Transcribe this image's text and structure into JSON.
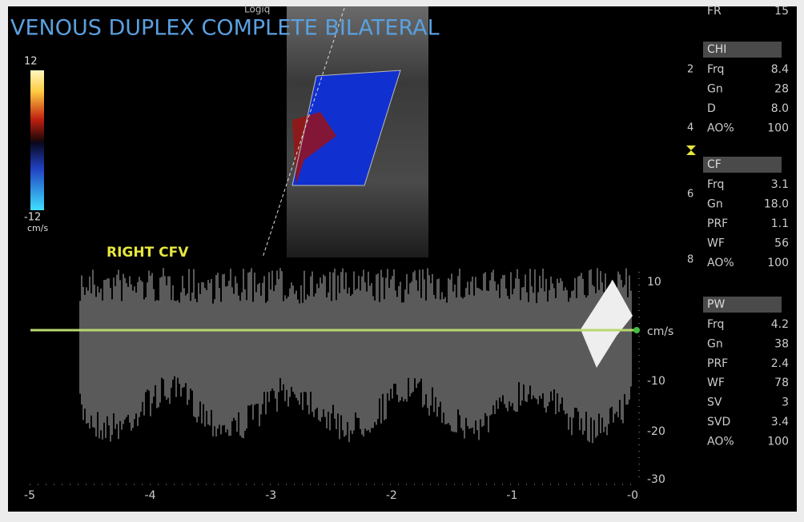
{
  "header": {
    "title": "VENOUS DUPLEX COMPLETE BILATERAL",
    "probe": "Logiq"
  },
  "color_scale": {
    "max": "12",
    "min": "-12",
    "unit": "cm/s"
  },
  "depth_marks": [
    "2",
    "4",
    "6",
    "8"
  ],
  "vessel_label": "RIGHT CFV",
  "frame_rate": {
    "label": "FR",
    "value": "15"
  },
  "sections": [
    {
      "title": "CHI",
      "rows": [
        [
          "Frq",
          "8.4"
        ],
        [
          "Gn",
          "28"
        ],
        [
          "D",
          "8.0"
        ],
        [
          "AO%",
          "100"
        ]
      ]
    },
    {
      "title": "CF",
      "rows": [
        [
          "Frq",
          "3.1"
        ],
        [
          "Gn",
          "18.0"
        ],
        [
          "PRF",
          "1.1"
        ],
        [
          "WF",
          "56"
        ],
        [
          "AO%",
          "100"
        ]
      ]
    },
    {
      "title": "PW",
      "rows": [
        [
          "Frq",
          "4.2"
        ],
        [
          "Gn",
          "38"
        ],
        [
          "PRF",
          "2.4"
        ],
        [
          "WF",
          "78"
        ],
        [
          "SV",
          "3"
        ],
        [
          "SVD",
          "3.4"
        ],
        [
          "AO%",
          "100"
        ]
      ]
    }
  ],
  "doppler": {
    "velocity_ticks": [
      "10",
      "cm/s",
      "-10",
      "-20",
      "-30"
    ],
    "time_ticks": [
      "-5",
      "-4",
      "-3",
      "-2",
      "-1",
      "-0"
    ]
  }
}
